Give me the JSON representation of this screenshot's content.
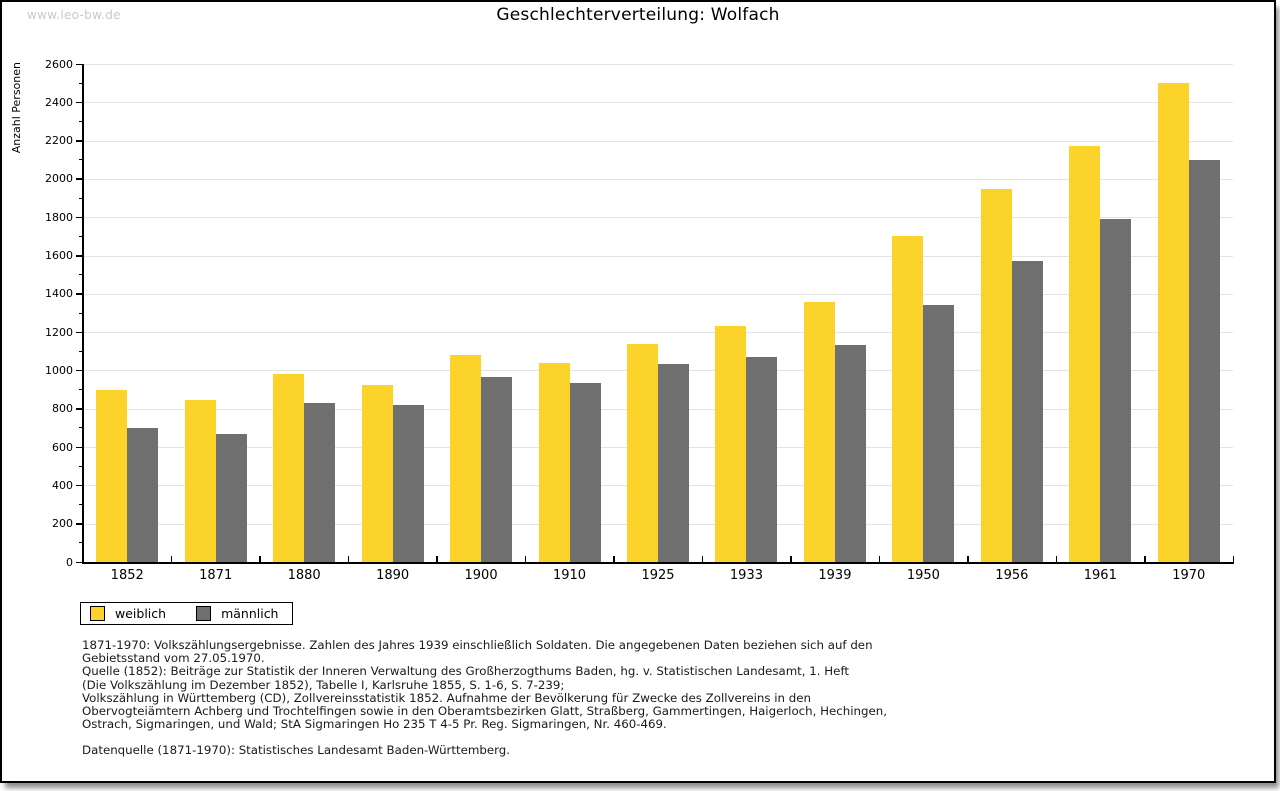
{
  "watermark": "www.leo-bw.de",
  "title": "Geschlechterverteilung: Wolfach",
  "chart_data": {
    "type": "bar",
    "title": "Geschlechterverteilung: Wolfach",
    "ylabel": "Anzahl Personen",
    "xlabel": "",
    "categories": [
      "1852",
      "1871",
      "1880",
      "1890",
      "1900",
      "1910",
      "1925",
      "1933",
      "1939",
      "1950",
      "1956",
      "1961",
      "1970"
    ],
    "series": [
      {
        "name": "weiblich",
        "color": "#fcd32b",
        "values": [
          900,
          845,
          980,
          925,
          1080,
          1040,
          1140,
          1230,
          1360,
          1700,
          1945,
          2170,
          2500
        ]
      },
      {
        "name": "männlich",
        "color": "#6f6f6f",
        "values": [
          700,
          670,
          830,
          820,
          965,
          935,
          1035,
          1070,
          1135,
          1340,
          1570,
          1790,
          2100
        ]
      }
    ],
    "ylim": [
      0,
      2600
    ],
    "ytick_step": 200,
    "yminor_step": 100,
    "grid": true,
    "legend_position": "bottom-left"
  },
  "legend": {
    "items": [
      {
        "label": "weiblich",
        "color": "#fcd32b"
      },
      {
        "label": "männlich",
        "color": "#6f6f6f"
      }
    ]
  },
  "footnotes": {
    "lines": [
      "1871-1970: Volkszählungsergebnisse. Zahlen des Jahres 1939 einschließlich Soldaten. Die angegebenen Daten beziehen sich auf den",
      "Gebietsstand vom 27.05.1970.",
      "Quelle (1852): Beiträge zur Statistik der Inneren Verwaltung des Großherzogthums Baden, hg. v. Statistischen Landesamt, 1. Heft",
      "(Die Volkszählung im Dezember 1852), Tabelle I, Karlsruhe 1855, S. 1-6, S. 7-239;",
      "Volkszählung in Württemberg (CD), Zollvereinsstatistik 1852. Aufnahme der Bevölkerung für Zwecke des Zollvereins in den",
      "Obervogteiämtern Achberg und Trochtelfingen sowie in den Oberamtsbezirken Glatt, Straßberg, Gammertingen, Haigerloch, Hechingen,",
      "Ostrach, Sigmaringen, und Wald; StA Sigmaringen Ho 235 T 4-5 Pr. Reg. Sigmaringen, Nr. 460-469."
    ],
    "datasource": "Datenquelle (1871-1970): Statistisches Landesamt Baden-Württemberg."
  },
  "colors": {
    "female_bar": "#fcd32b",
    "male_bar": "#6f6f6f",
    "gridline": "#e4e4e4",
    "watermark": "#c9c9c9",
    "axis": "#000000"
  }
}
